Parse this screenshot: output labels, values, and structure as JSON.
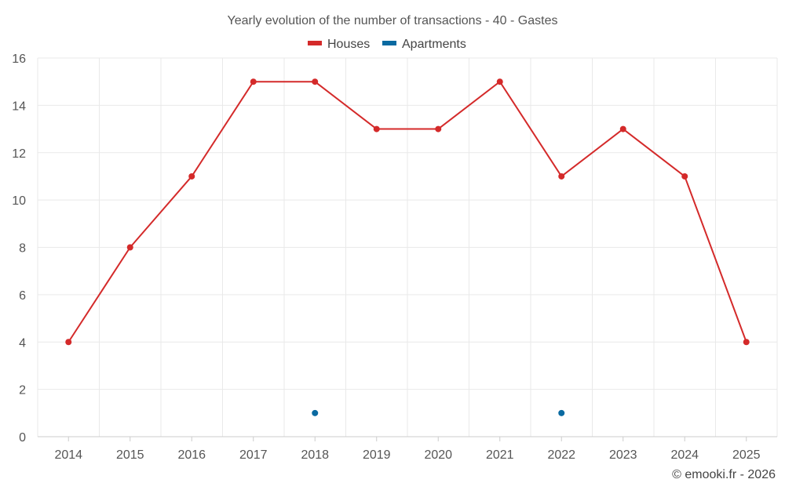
{
  "chart_data": {
    "type": "line",
    "title": "Yearly evolution of the number of transactions - 40 - Gastes",
    "xlabel": "",
    "ylabel": "",
    "categories": [
      "2014",
      "2015",
      "2016",
      "2017",
      "2018",
      "2019",
      "2020",
      "2021",
      "2022",
      "2023",
      "2024",
      "2025"
    ],
    "ylim": [
      0,
      16
    ],
    "yticks": [
      0,
      2,
      4,
      6,
      8,
      10,
      12,
      14,
      16
    ],
    "grid": true,
    "legend_position": "top-center",
    "series": [
      {
        "name": "Houses",
        "color": "#d42a2a",
        "values": [
          4,
          8,
          11,
          15,
          15,
          13,
          13,
          15,
          11,
          13,
          11,
          4
        ]
      },
      {
        "name": "Apartments",
        "color": "#0a6aa1",
        "values": [
          null,
          null,
          null,
          null,
          1,
          null,
          null,
          null,
          1,
          null,
          null,
          null
        ]
      }
    ]
  },
  "credit": "© emooki.fr - 2026"
}
